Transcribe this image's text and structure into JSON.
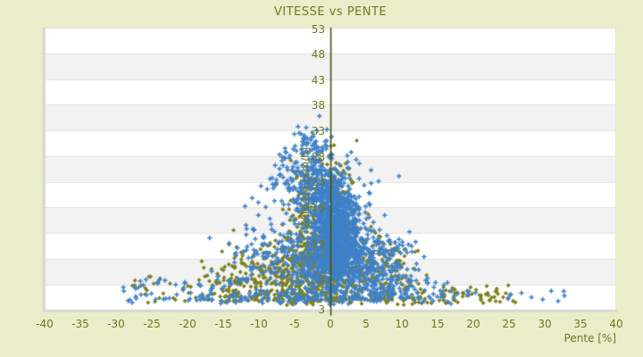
{
  "page": {
    "background_color": "#e9edca",
    "text_color": "#72761f"
  },
  "chart_data": {
    "type": "scatter",
    "title": "VITESSE vs PENTE",
    "xlabel": "Pente [%]",
    "ylabel": "Vitesse [km/h]",
    "xlim": [
      -40,
      40
    ],
    "ylim": [
      3,
      53
    ],
    "xticks": [
      -40,
      -35,
      -30,
      -25,
      -20,
      -15,
      -10,
      -5,
      0,
      5,
      10,
      15,
      20,
      25,
      30,
      35,
      40
    ],
    "yticks": [
      53,
      48,
      43,
      38,
      33,
      28,
      23,
      18,
      13,
      8,
      3
    ],
    "grid": "horizontal-alternating-bands",
    "band_colors": [
      "#ffffff",
      "#f2f2f2"
    ],
    "legend": "none",
    "zero_axis_line": {
      "x": 0,
      "color": "#45500f"
    },
    "seed": 7,
    "series": [
      {
        "name": "vitesse-pente-olive",
        "marker": "diamond",
        "color": "#7f811f",
        "clusters": [
          {
            "n": 430,
            "dist": "normal",
            "mx": -0.5,
            "sx": 2.4,
            "my": 13.5,
            "sy": 4.0,
            "clip": [
              -7,
              6,
              4.5,
              26
            ]
          },
          {
            "n": 200,
            "dist": "normal",
            "mx": -3.5,
            "sx": 3.2,
            "my": 9.5,
            "sy": 3.0,
            "clip": [
              -11,
              2,
              4.5,
              18
            ]
          },
          {
            "n": 120,
            "dist": "normal",
            "mx": -1.0,
            "sx": 2.6,
            "my": 21.5,
            "sy": 3.4,
            "clip": [
              -7,
              4,
              15,
              33.5
            ]
          },
          {
            "n": 170,
            "dist": "normal",
            "mx": -9.0,
            "sx": 4.8,
            "my": 9.0,
            "sy": 3.4,
            "clip": [
              -20,
              -2,
              4.3,
              22
            ]
          },
          {
            "n": 55,
            "dist": "uniform",
            "clip": [
              -28,
              -10,
              4.2,
              9
            ]
          },
          {
            "n": 160,
            "dist": "normal",
            "mx": 6.0,
            "sx": 2.8,
            "my": 10.0,
            "sy": 3.0,
            "clip": [
              1,
              14,
              4.3,
              18
            ]
          },
          {
            "n": 130,
            "dist": "normal",
            "mx": 2.0,
            "sx": 10.0,
            "my": 5.2,
            "sy": 0.8,
            "clip": [
              -24,
              24,
              3.9,
              7
            ]
          },
          {
            "n": 55,
            "dist": "uniform",
            "clip": [
              8,
              26,
              4.2,
              7.5
            ]
          },
          {
            "n": 30,
            "dist": "normal",
            "mx": 0.5,
            "sx": 1.5,
            "my": 27.0,
            "sy": 2.5,
            "clip": [
              -4,
              4,
              22,
              33.5
            ]
          }
        ]
      },
      {
        "name": "vitesse-pente-bleue",
        "marker": "plus",
        "color": "#3f81c9",
        "clusters": [
          {
            "n": 800,
            "dist": "normal",
            "mx": 0.8,
            "sx": 1.9,
            "my": 16.5,
            "sy": 4.2,
            "clip": [
              -5,
              6,
              5.5,
              29
            ]
          },
          {
            "n": 300,
            "dist": "normal",
            "mx": 0.5,
            "sx": 3.2,
            "my": 10.5,
            "sy": 3.0,
            "clip": [
              -8,
              9,
              4.5,
              18
            ]
          },
          {
            "n": 260,
            "dist": "normal",
            "mx": -0.8,
            "sx": 2.0,
            "my": 24.0,
            "sy": 3.0,
            "clip": [
              -6,
              4,
              18,
              31
            ]
          },
          {
            "n": 90,
            "dist": "normal",
            "mx": -2.8,
            "sx": 1.8,
            "my": 30.5,
            "sy": 2.6,
            "clip": [
              -7,
              1.5,
              27,
              38.8
            ]
          },
          {
            "n": 70,
            "dist": "normal",
            "mx": -5.0,
            "sx": 2.6,
            "my": 25.5,
            "sy": 3.0,
            "clip": [
              -11,
              -1,
              20,
              33
            ]
          },
          {
            "n": 150,
            "dist": "normal",
            "mx": -7.5,
            "sx": 4.2,
            "my": 12.0,
            "sy": 4.2,
            "clip": [
              -17,
              -2,
              5,
              26
            ]
          },
          {
            "n": 45,
            "dist": "uniform",
            "clip": [
              -29,
              -12,
              4.3,
              8.5
            ]
          },
          {
            "n": 170,
            "dist": "normal",
            "mx": 6.5,
            "sx": 2.6,
            "my": 12.0,
            "sy": 3.2,
            "clip": [
              2,
              14,
              5,
              20
            ]
          },
          {
            "n": 60,
            "dist": "normal",
            "mx": 10.0,
            "sx": 3.0,
            "my": 7.0,
            "sy": 1.6,
            "clip": [
              4,
              17,
              4.3,
              11
            ]
          },
          {
            "n": 140,
            "dist": "normal",
            "mx": 0.0,
            "sx": 9.0,
            "my": 5.3,
            "sy": 0.9,
            "clip": [
              -26,
              20,
              3.9,
              7.5
            ]
          },
          {
            "n": 45,
            "dist": "uniform",
            "clip": [
              -29,
              33,
              4.2,
              6.5
            ]
          },
          {
            "n": 60,
            "dist": "normal",
            "mx": -2.0,
            "sx": 6.0,
            "my": 20.0,
            "sy": 5.0,
            "clip": [
              -14,
              10,
              8,
              32
            ]
          }
        ]
      }
    ]
  },
  "layout_note": ""
}
